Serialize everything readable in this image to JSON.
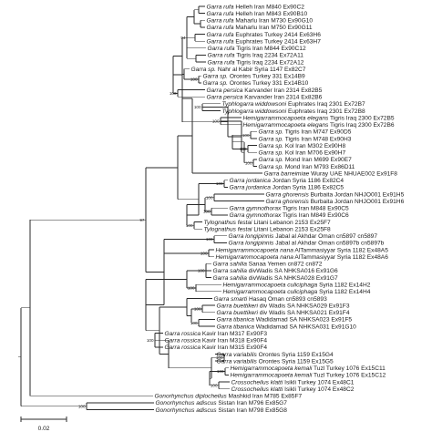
{
  "tree": {
    "leaves": [
      {
        "taxon": "Garra rufa",
        "rest": " Helleh Iran M840 Ex90C2"
      },
      {
        "taxon": "Garra rufa",
        "rest": " Helleh Iran M843 Ex90B10"
      },
      {
        "taxon": "Garra rufa",
        "rest": " Maharlu Iran M730 Ex90G10"
      },
      {
        "taxon": "Garra rufa",
        "rest": " Maharlu Iran M750 Ex90G11"
      },
      {
        "taxon": "Garra rufa",
        "rest": " Euphrates Turkey 2414 Ex63H6"
      },
      {
        "taxon": "Garra rufa",
        "rest": " Euphrates Turkey 2414 Ex63H7"
      },
      {
        "taxon": "Garra rufa",
        "rest": " Tigris Iran M844 Ex90C12"
      },
      {
        "taxon": "Garra rufa",
        "rest": " Tigris Iraq 2234 Ex72A11"
      },
      {
        "taxon": "Garra rufa",
        "rest": " Tigris Iraq 2234 Ex72A12"
      },
      {
        "taxon": "Garra sp.",
        "rest": " Nahr al Kabir Syria 1147 Ex82C7"
      },
      {
        "taxon": "Garra sp.",
        "rest": " Orontes Turkey 331 Ex14B9"
      },
      {
        "taxon": "Garra sp.",
        "rest": " Orontes Turkey 331 Ex14B10"
      },
      {
        "taxon": "Garra persica",
        "rest": " Karvander Iran 2314 Ex82B5"
      },
      {
        "taxon": "Garra persica",
        "rest": " Karvander Iran 2314 Ex82B6"
      },
      {
        "taxon": "Typhlogarra widdowsoni",
        "rest": " Euphrates Iraq 2301 Ex72B7"
      },
      {
        "taxon": "Typhlogarra widdowsoni",
        "rest": " Euphrates Iraq 2301 Ex72B8"
      },
      {
        "taxon": "Hemigarrammocapoeta elegans",
        "rest": " Tigris Iraq 2300 Ex72B5"
      },
      {
        "taxon": "Hemigarrammocapoeta elegans",
        "rest": " Tigris Iraq 2300 Ex72B6"
      },
      {
        "taxon": "Garra sp.",
        "rest": " Tigris Iran M747 Ex90D5"
      },
      {
        "taxon": "Garra sp.",
        "rest": " Tigris Iran M748 Ex90H3"
      },
      {
        "taxon": "Garra sp.",
        "rest": " Kol Iran M302 Ex90H8"
      },
      {
        "taxon": "Garra sp.",
        "rest": " Kol Iran M706 Ex90H7"
      },
      {
        "taxon": "Garra sp.",
        "rest": " Mond Iran M699 Ex90E7"
      },
      {
        "taxon": "Garra sp.",
        "rest": " Mond Iran M793 Ex86D11"
      },
      {
        "taxon": "Garra barreimiae",
        "rest": " Wuray UAE NHUAE002 Ex91F8"
      },
      {
        "taxon": "Garra jordanica",
        "rest": " Jordan Syria 1186 Ex82C4"
      },
      {
        "taxon": "Garra jordanica",
        "rest": " Jordan Syria 1186 Ex82C5"
      },
      {
        "taxon": "Garra ghorensis",
        "rest": " Burbaita Jordan NHJO001 Ex91H5"
      },
      {
        "taxon": "Garra ghorensis",
        "rest": " Burbaita Jordan NHJO001 Ex91H6"
      },
      {
        "taxon": "Garra gymnothorax",
        "rest": " Tigris Iran M848 Ex90C5"
      },
      {
        "taxon": "Garra gymnothorax",
        "rest": " Tigris Iran M849 Ex90C6"
      },
      {
        "taxon": "Tylognathus festai",
        "rest": " Litani Lebanon 2153 Ex25F7"
      },
      {
        "taxon": "Tylognathus festai",
        "rest": " Litani Lebanon 2153 Ex25F8"
      },
      {
        "taxon": "Garra longipinnis",
        "rest": " Jabal al Akhdar Oman cn5897 cn5897"
      },
      {
        "taxon": "Garra longipinnis",
        "rest": " Jabal al Akhdar Oman cn5897b cn5897b"
      },
      {
        "taxon": "Hemigarrammocapoeta nana",
        "rest": " AlTammasiyyar Syria 1182 Ex48A5"
      },
      {
        "taxon": "Hemigarrammocapoeta nana",
        "rest": " AlTammasiyyar Syria 1182 Ex48A6"
      },
      {
        "taxon": "Garra sahilia",
        "rest": " Sanaa Yemen cn872 cn872"
      },
      {
        "taxon": "Garra sahilia",
        "rest": " divWadis SA NHKSA016 Ex91G6"
      },
      {
        "taxon": "Garra sahilia",
        "rest": " divWadis SA NHKSA028 Ex91G7"
      },
      {
        "taxon": "Hemigarrammocapoeta culiciphaga",
        "rest": " Syria 1182 Ex14H2"
      },
      {
        "taxon": "Hemigarrammocapoeta culiciphaga",
        "rest": " Syria 1182 Ex14H4"
      },
      {
        "taxon": "Garra smarti",
        "rest": " Hasaq Oman cn5893 cn5893"
      },
      {
        "taxon": "Garra buettikeri",
        "rest": " div Wadis SA NHKSA029 Ex91F3"
      },
      {
        "taxon": "Garra buettikeri",
        "rest": " div Wadis SA NHKSA021 Ex91F4"
      },
      {
        "taxon": "Garra tibanica",
        "rest": " Wadidamad SA NHKSA023 Ex91F5"
      },
      {
        "taxon": "Garra tibanica",
        "rest": " Wadidamad SA NHKSA031 Ex91G10"
      },
      {
        "taxon": "Garra rossica",
        "rest": " Kavir Iran M317 Ex90F3"
      },
      {
        "taxon": "Garra rossica",
        "rest": " Kavir Iran M318 Ex90F4"
      },
      {
        "taxon": "Garra rossica",
        "rest": " Kavir Iran M315 Ex90F4"
      },
      {
        "taxon": "Garra variabilis",
        "rest": " Orontes Syria 1159 Ex15G4"
      },
      {
        "taxon": "Garra variabilis",
        "rest": " Orontes Syria 1159 Ex15G5"
      },
      {
        "taxon": "Hemigarrammocapoeta kemali",
        "rest": " Tuzl Turkey 1076 Ex15C11"
      },
      {
        "taxon": "Hemigarrammocapoeta kemali",
        "rest": " Tuzl Turkey 1076 Ex15C12"
      },
      {
        "taxon": "Crossocheilus klatti",
        "rest": " Isikli Turkey 1074 Ex48C1"
      },
      {
        "taxon": "Crossocheilus klatti",
        "rest": " Isikli Turkey 1074 Ex48C2"
      },
      {
        "taxon": "Gonorhynchus diplocheilus",
        "rest": " Mashkid Iran M785 Ex85F7"
      },
      {
        "taxon": "Gonorhynchus adiscus",
        "rest": " Sistan Iran M796 Ex85G7"
      },
      {
        "taxon": "Gonorhynchus adiscus",
        "rest": " Sistan Iran M798 Ex85G8"
      }
    ],
    "bootstrap_values": [
      "100",
      "94",
      "100",
      "100",
      "100",
      "100",
      "100",
      "100",
      "100",
      "100",
      "100",
      "100",
      "100",
      "100",
      "100",
      "100",
      "100",
      "100",
      "97",
      "100",
      "100",
      "100",
      "100",
      "100",
      "100",
      "100",
      "85",
      "100",
      "100",
      "100",
      "100",
      "100",
      "100",
      "100",
      "100",
      "100",
      "100"
    ],
    "scale_bar_label": "0.02"
  }
}
